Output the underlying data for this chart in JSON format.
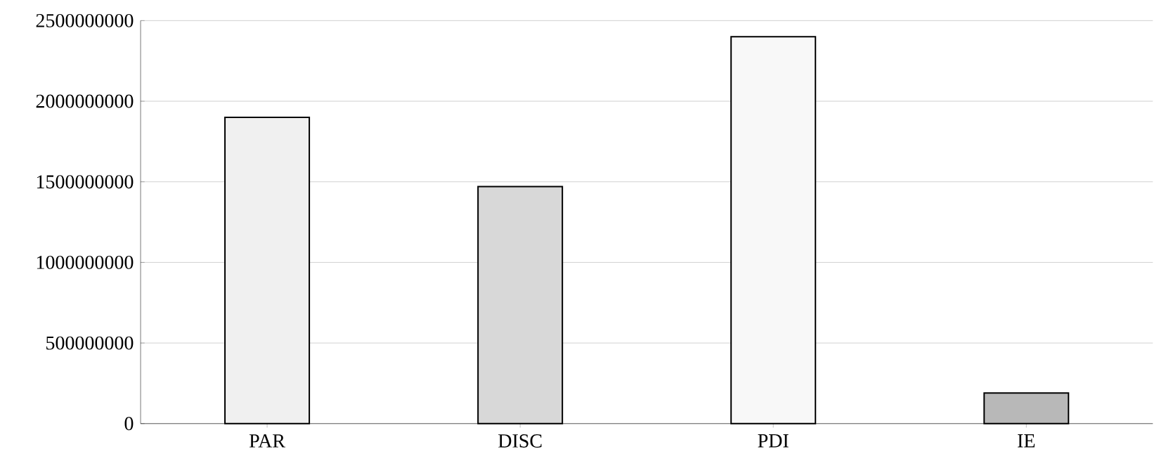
{
  "chart_data": {
    "type": "bar",
    "categories": [
      "PAR",
      "DISC",
      "PDI",
      "IE"
    ],
    "values": [
      1900000000,
      1470000000,
      2400000000,
      190000000
    ],
    "colors": [
      "#f0f0f0",
      "#d8d8d8",
      "#f8f8f8",
      "#b8b8b8"
    ],
    "ylim": [
      0,
      2500000000
    ],
    "yticks": [
      0,
      500000000,
      1000000000,
      1500000000,
      2000000000,
      2500000000
    ],
    "grid": "y"
  }
}
